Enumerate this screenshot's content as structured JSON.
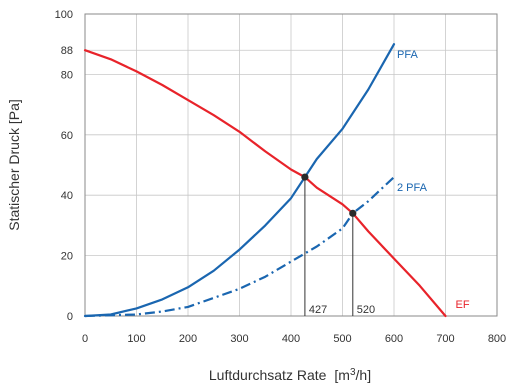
{
  "chart_data": {
    "type": "line",
    "xlabel": "Luftdurchsatz Rate",
    "xlabel_unit": "[m",
    "xlabel_unit_sup": "3",
    "xlabel_unit_end": "/h]",
    "ylabel": "Statischer Druck [Pa]",
    "xlim": [
      0,
      800
    ],
    "ylim": [
      0,
      100
    ],
    "x_ticks": [
      "0",
      "100",
      "200",
      "300",
      "400",
      "500",
      "600",
      "700",
      "800"
    ],
    "y_ticks": [
      "0",
      "20",
      "40",
      "60",
      "80",
      "88",
      "100"
    ],
    "grid": true,
    "series": [
      {
        "name": "PFA",
        "color": "#1a66b0",
        "style": "solid",
        "x": [
          0,
          50,
          100,
          150,
          200,
          250,
          300,
          350,
          400,
          427,
          450,
          500,
          550,
          600
        ],
        "y": [
          0,
          0.5,
          2.5,
          5.5,
          9.5,
          15,
          22,
          30,
          39,
          46,
          52,
          62,
          75,
          90
        ]
      },
      {
        "name": "2 PFA",
        "color": "#1a66b0",
        "style": "dashdot",
        "x": [
          0,
          100,
          150,
          200,
          250,
          300,
          350,
          400,
          450,
          500,
          520,
          550,
          600
        ],
        "y": [
          0,
          0.5,
          1.5,
          3,
          6,
          9,
          13,
          18,
          23,
          29,
          34,
          38,
          46
        ]
      },
      {
        "name": "EF",
        "color": "#e8232a",
        "style": "solid",
        "x": [
          0,
          50,
          100,
          150,
          200,
          250,
          300,
          350,
          400,
          427,
          450,
          500,
          520,
          550,
          600,
          650,
          700
        ],
        "y": [
          88,
          85,
          81,
          76.5,
          71.5,
          66.5,
          61,
          54.5,
          48.5,
          46,
          42.5,
          37,
          34,
          28,
          19,
          10,
          0
        ]
      }
    ],
    "annotations": [
      {
        "label": "427",
        "x": 427,
        "y": 46,
        "color": "#333333"
      },
      {
        "label": "520",
        "x": 520,
        "y": 34,
        "color": "#333333"
      }
    ]
  }
}
